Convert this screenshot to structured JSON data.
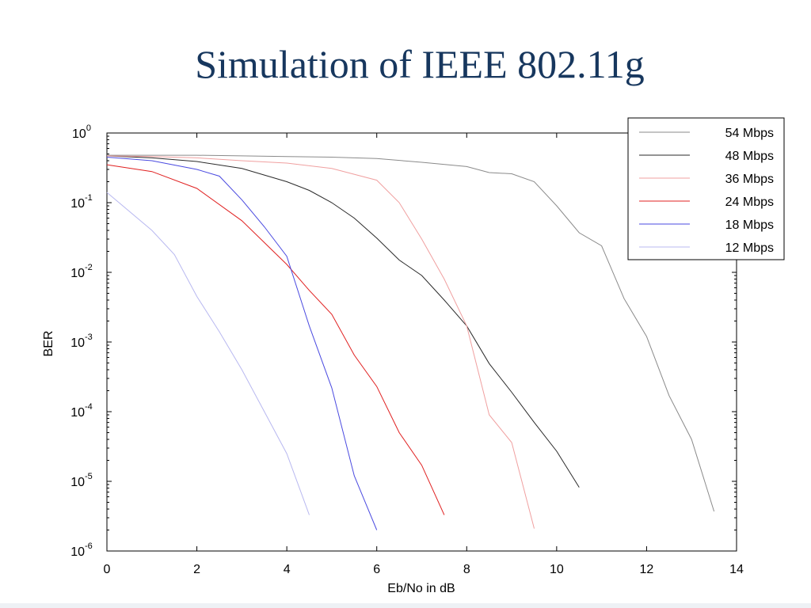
{
  "slide": {
    "title": "Simulation of IEEE 802.11g"
  },
  "chart_data": {
    "type": "line",
    "title": "",
    "xlabel": "Eb/No in dB",
    "ylabel": "BER",
    "xlim": [
      0,
      14
    ],
    "ylim": [
      1e-06,
      1
    ],
    "yscale": "log",
    "grid": false,
    "legend_position": "top-right",
    "x_ticks": [
      0,
      2,
      4,
      6,
      8,
      10,
      12,
      14
    ],
    "y_ticks": [
      {
        "value": 1,
        "base": "10",
        "exp": "0"
      },
      {
        "value": 0.1,
        "base": "10",
        "exp": "-1"
      },
      {
        "value": 0.01,
        "base": "10",
        "exp": "-2"
      },
      {
        "value": 0.001,
        "base": "10",
        "exp": "-3"
      },
      {
        "value": 0.0001,
        "base": "10",
        "exp": "-4"
      },
      {
        "value": 1e-05,
        "base": "10",
        "exp": "-5"
      },
      {
        "value": 1e-06,
        "base": "10",
        "exp": "-6"
      }
    ],
    "series": [
      {
        "name": "54 Mbps",
        "color": "#8a8a8a",
        "points": [
          [
            0,
            0.48
          ],
          [
            1,
            0.48
          ],
          [
            2,
            0.48
          ],
          [
            3,
            0.47
          ],
          [
            4,
            0.46
          ],
          [
            5,
            0.45
          ],
          [
            6,
            0.43
          ],
          [
            7,
            0.38
          ],
          [
            8,
            0.33
          ],
          [
            8.5,
            0.27
          ],
          [
            9,
            0.26
          ],
          [
            9.5,
            0.2
          ],
          [
            10,
            0.09
          ],
          [
            10.5,
            0.037
          ],
          [
            11,
            0.024
          ],
          [
            11.5,
            0.0042
          ],
          [
            12,
            0.0012
          ],
          [
            12.5,
            0.00017
          ],
          [
            13,
            4e-05
          ],
          [
            13.5,
            3.7e-06
          ]
        ]
      },
      {
        "name": "48 Mbps",
        "color": "#2a2a2a",
        "points": [
          [
            0,
            0.47
          ],
          [
            1,
            0.44
          ],
          [
            2,
            0.39
          ],
          [
            3,
            0.31
          ],
          [
            4,
            0.2
          ],
          [
            4.5,
            0.15
          ],
          [
            5,
            0.1
          ],
          [
            5.5,
            0.06
          ],
          [
            6,
            0.031
          ],
          [
            6.5,
            0.015
          ],
          [
            7,
            0.009
          ],
          [
            7.5,
            0.004
          ],
          [
            8,
            0.0017
          ],
          [
            8.5,
            0.00049
          ],
          [
            9,
            0.00019
          ],
          [
            9.5,
            7e-05
          ],
          [
            10,
            2.7e-05
          ],
          [
            10.5,
            8.2e-06
          ]
        ]
      },
      {
        "name": "36 Mbps",
        "color": "#f0a0a0",
        "points": [
          [
            0,
            0.47
          ],
          [
            1,
            0.46
          ],
          [
            2,
            0.44
          ],
          [
            3,
            0.4
          ],
          [
            4,
            0.37
          ],
          [
            5,
            0.31
          ],
          [
            6,
            0.21
          ],
          [
            6.5,
            0.1
          ],
          [
            7,
            0.03
          ],
          [
            7.5,
            0.008
          ],
          [
            8,
            0.0017
          ],
          [
            8.5,
            9e-05
          ],
          [
            9,
            3.6e-05
          ],
          [
            9.5,
            2.1e-06
          ]
        ]
      },
      {
        "name": "24 Mbps",
        "color": "#e02020",
        "points": [
          [
            0,
            0.35
          ],
          [
            1,
            0.28
          ],
          [
            2,
            0.16
          ],
          [
            3,
            0.055
          ],
          [
            4,
            0.013
          ],
          [
            4.5,
            0.0055
          ],
          [
            5,
            0.0025
          ],
          [
            5.5,
            0.00065
          ],
          [
            6,
            0.00023
          ],
          [
            6.5,
            5e-05
          ],
          [
            7,
            1.7e-05
          ],
          [
            7.5,
            3.3e-06
          ]
        ]
      },
      {
        "name": "18 Mbps",
        "color": "#4a4ae0",
        "points": [
          [
            0,
            0.45
          ],
          [
            1,
            0.4
          ],
          [
            2,
            0.3
          ],
          [
            2.5,
            0.24
          ],
          [
            3,
            0.11
          ],
          [
            3.5,
            0.045
          ],
          [
            4,
            0.017
          ],
          [
            4.5,
            0.0017
          ],
          [
            5,
            0.00022
          ],
          [
            5.5,
            1.2e-05
          ],
          [
            6,
            2e-06
          ]
        ]
      },
      {
        "name": "12 Mbps",
        "color": "#b8b8f0",
        "points": [
          [
            0,
            0.14
          ],
          [
            1,
            0.04
          ],
          [
            1.5,
            0.018
          ],
          [
            2,
            0.0045
          ],
          [
            2.5,
            0.0014
          ],
          [
            3,
            0.0004
          ],
          [
            3.5,
            0.0001
          ],
          [
            4,
            2.5e-05
          ],
          [
            4.5,
            3.3e-06
          ]
        ]
      }
    ]
  }
}
